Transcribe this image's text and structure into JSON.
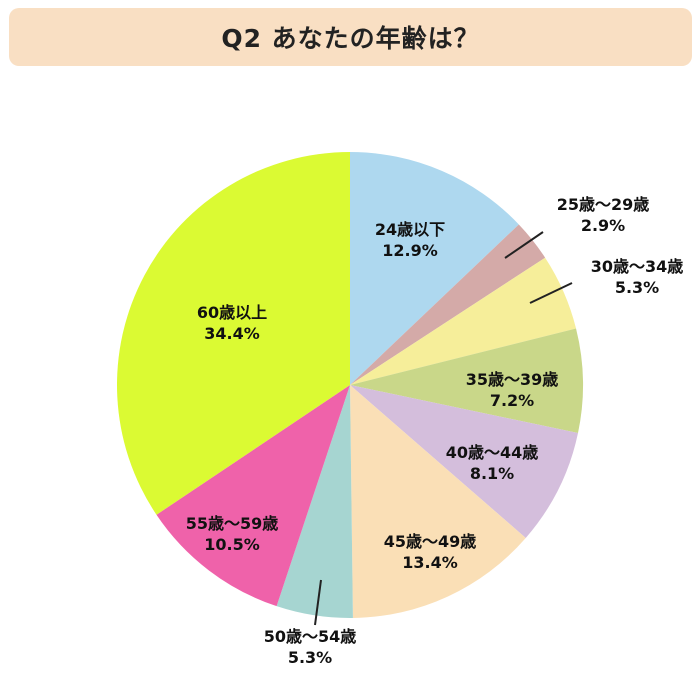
{
  "title": "Q2 あなたの年齢は？",
  "chart_data": {
    "type": "pie",
    "start": "top",
    "direction": "clockwise",
    "slices": [
      {
        "label": "24歳以下",
        "value": 12.9,
        "text": "12.9%",
        "color": "#aed8ef"
      },
      {
        "label": "25歳〜29歳",
        "value": 2.9,
        "text": "2.9%",
        "color": "#d4aaa8"
      },
      {
        "label": "30歳〜34歳",
        "value": 5.3,
        "text": "5.3%",
        "color": "#f6ee9a"
      },
      {
        "label": "35歳〜39歳",
        "value": 7.2,
        "text": "7.2%",
        "color": "#c9d789"
      },
      {
        "label": "40歳〜44歳",
        "value": 8.1,
        "text": "8.1%",
        "color": "#d4bedc"
      },
      {
        "label": "45歳〜49歳",
        "value": 13.4,
        "text": "13.4%",
        "color": "#fadfb6"
      },
      {
        "label": "50歳〜54歳",
        "value": 5.3,
        "text": "5.3%",
        "color": "#a6d5d1"
      },
      {
        "label": "55歳〜59歳",
        "value": 10.5,
        "text": "10.5%",
        "color": "#ef62aa"
      },
      {
        "label": "60歳以上",
        "value": 34.4,
        "text": "34.4%",
        "color": "#dbfa33"
      }
    ]
  }
}
